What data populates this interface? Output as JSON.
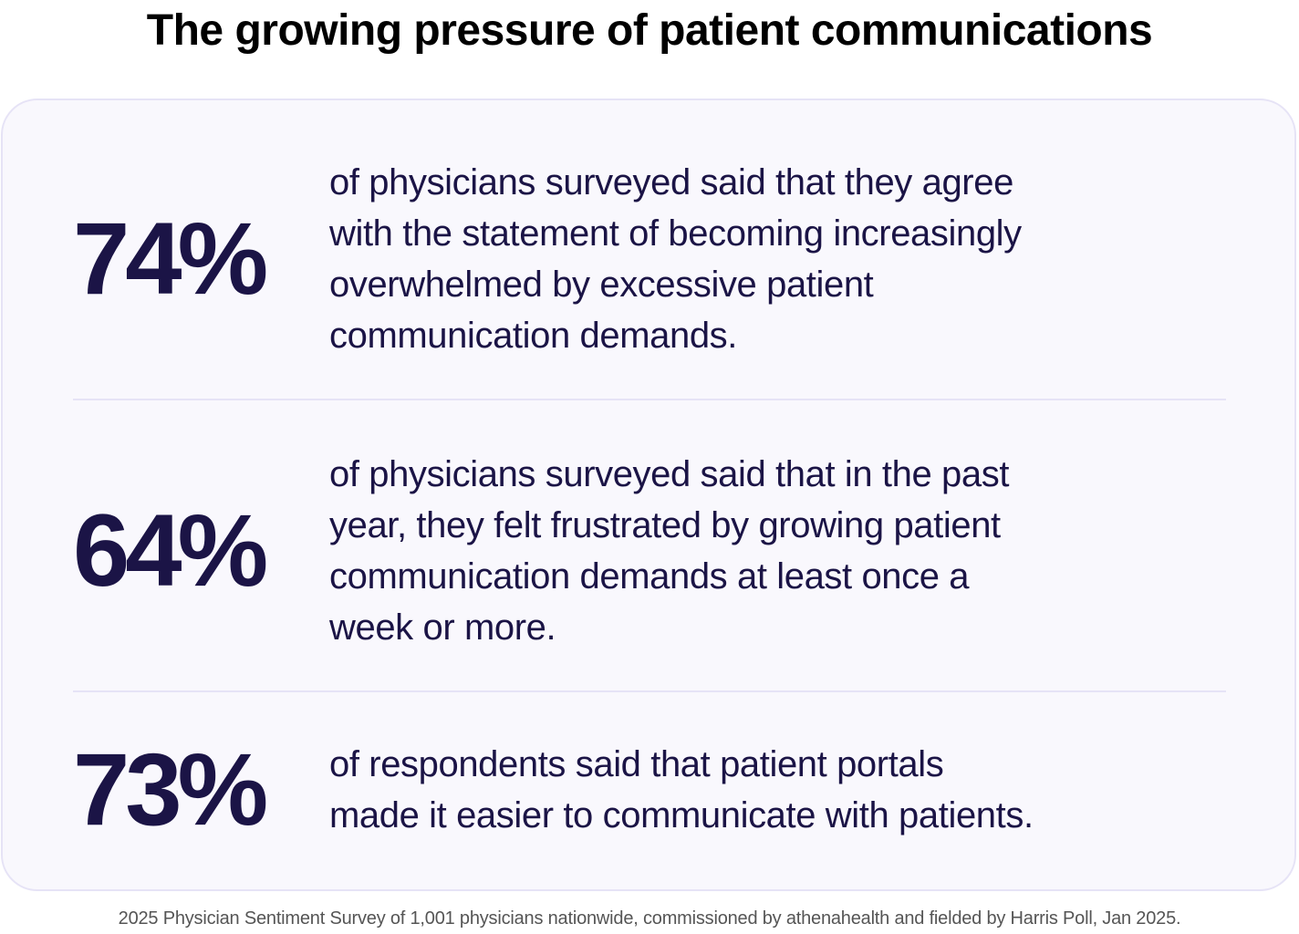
{
  "title": "The growing pressure of patient communications",
  "stats": [
    {
      "value": "74%",
      "lines": [
        "of physicians surveyed said that they agree",
        "with the statement of becoming increasingly",
        "overwhelmed by excessive patient",
        "communication demands."
      ]
    },
    {
      "value": "64%",
      "lines": [
        "of physicians surveyed said that in the past",
        "year, they felt frustrated by growing patient",
        "communication demands at least once a",
        "week or more."
      ]
    },
    {
      "value": "73%",
      "lines": [
        "of respondents said that patient portals",
        "made it easier to communicate with patients."
      ]
    }
  ],
  "footer": "2025 Physician Sentiment Survey of 1,001 physicians nationwide, commissioned by athenahealth and fielded by Harris Poll, Jan 2025.",
  "colors": {
    "text": "#1b1446",
    "card_bg": "#f9f8fd",
    "card_border": "#e6e3f6"
  }
}
